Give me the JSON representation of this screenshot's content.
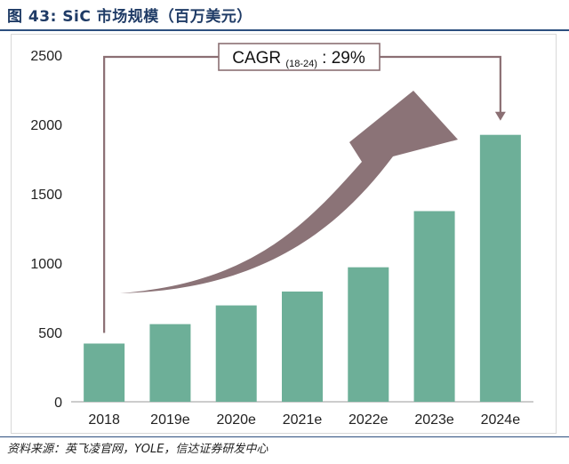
{
  "figure": {
    "title": "图 43:  SiC 市场规模（百万美元）",
    "source": "资料来源：英飞凌官网，YOLE，信达证券研发中心"
  },
  "chart_data": {
    "type": "bar",
    "categories": [
      "2018",
      "2019e",
      "2020e",
      "2021e",
      "2022e",
      "2023e",
      "2024e"
    ],
    "values": [
      420,
      560,
      695,
      795,
      970,
      1375,
      1925
    ],
    "ylim": [
      0,
      2500
    ],
    "yticks": [
      0,
      500,
      1000,
      1500,
      2000,
      2500
    ],
    "xlabel": "",
    "ylabel": "",
    "grid": false,
    "legend": "none",
    "annotation": {
      "label": "CAGR",
      "subscript": "(18-24)",
      "suffix": ": 29%"
    },
    "colors": {
      "bar": "#6daf98",
      "arrow": "#8b7377",
      "bracket": "#8b6f73"
    }
  }
}
